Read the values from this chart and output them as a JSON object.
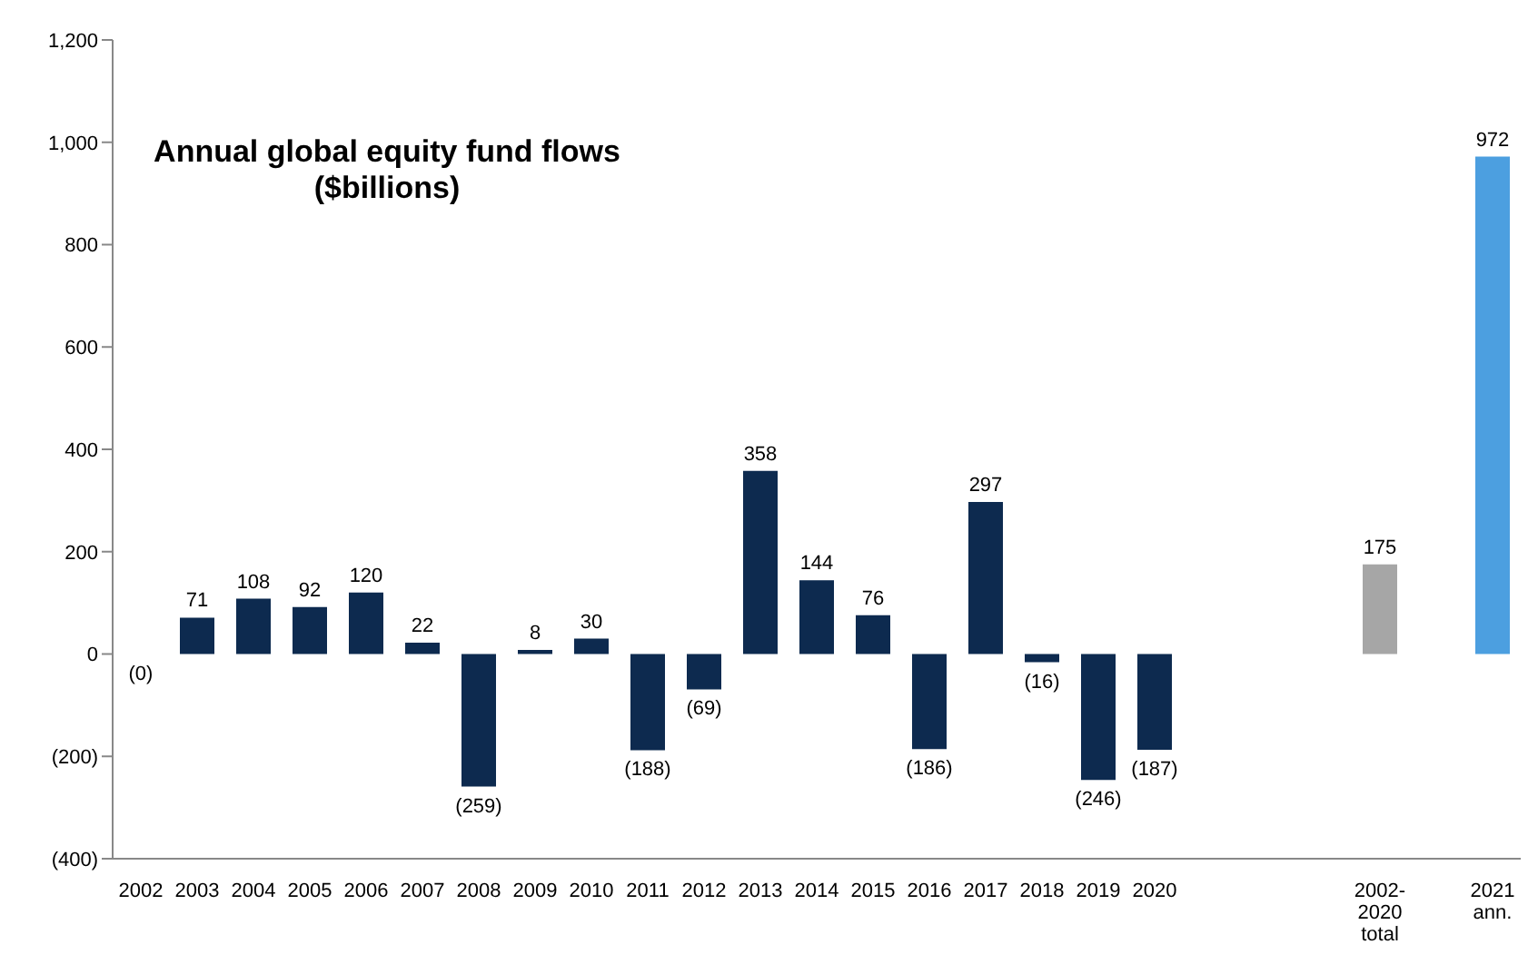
{
  "chart_data": {
    "type": "bar",
    "title": "Annual global equity fund flows",
    "subtitle": "($billions)",
    "categories": [
      "2002",
      "2003",
      "2004",
      "2005",
      "2006",
      "2007",
      "2008",
      "2009",
      "2010",
      "2011",
      "2012",
      "2013",
      "2014",
      "2015",
      "2016",
      "2017",
      "2018",
      "2019",
      "2020",
      null,
      null,
      null,
      "2002-\n2020\ntotal",
      null,
      "2021\nann."
    ],
    "values": [
      0,
      71,
      108,
      92,
      120,
      22,
      -259,
      8,
      30,
      -188,
      -69,
      358,
      144,
      76,
      -186,
      297,
      -16,
      -246,
      -187,
      null,
      null,
      null,
      175,
      null,
      972
    ],
    "value_labels": [
      "(0)",
      "71",
      "108",
      "92",
      "120",
      "22",
      "(259)",
      "8",
      "30",
      "(188)",
      "(69)",
      "358",
      "144",
      "76",
      "(186)",
      "297",
      "(16)",
      "(246)",
      "(187)",
      null,
      null,
      null,
      "175",
      null,
      "972"
    ],
    "colors": [
      "#0d2a4f",
      "#0d2a4f",
      "#0d2a4f",
      "#0d2a4f",
      "#0d2a4f",
      "#0d2a4f",
      "#0d2a4f",
      "#0d2a4f",
      "#0d2a4f",
      "#0d2a4f",
      "#0d2a4f",
      "#0d2a4f",
      "#0d2a4f",
      "#0d2a4f",
      "#0d2a4f",
      "#0d2a4f",
      "#0d2a4f",
      "#0d2a4f",
      "#0d2a4f",
      null,
      null,
      null,
      "#a6a6a6",
      null,
      "#4c9fe0"
    ],
    "ylim": [
      -400,
      1200
    ],
    "yticks": [
      {
        "value": -400,
        "label": "(400)"
      },
      {
        "value": -200,
        "label": "(200)"
      },
      0,
      200,
      400,
      600,
      800,
      {
        "value": 1000,
        "label": "1,000"
      },
      {
        "value": 1200,
        "label": "1,200"
      }
    ],
    "grid": false,
    "legend": false
  }
}
